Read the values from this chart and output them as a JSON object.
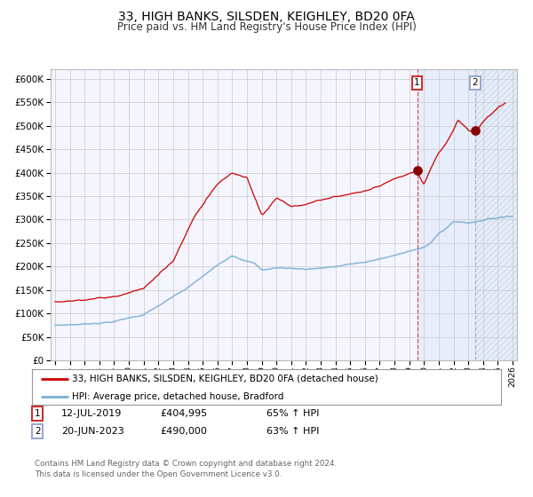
{
  "title": "33, HIGH BANKS, SILSDEN, KEIGHLEY, BD20 0FA",
  "subtitle": "Price paid vs. HM Land Registry's House Price Index (HPI)",
  "legend_line1": "33, HIGH BANKS, SILSDEN, KEIGHLEY, BD20 0FA (detached house)",
  "legend_line2": "HPI: Average price, detached house, Bradford",
  "sale1_date": "12-JUL-2019",
  "sale1_price": "£404,995",
  "sale1_hpi": "65% ↑ HPI",
  "sale2_date": "20-JUN-2023",
  "sale2_price": "£490,000",
  "sale2_hpi": "63% ↑ HPI",
  "footer": "Contains HM Land Registry data © Crown copyright and database right 2024.\nThis data is licensed under the Open Government Licence v3.0.",
  "red_color": "#cc0000",
  "blue_color": "#7bafd4",
  "background_color": "#ffffff",
  "grid_color": "#cccccc",
  "plot_bg": "#f5f5ff",
  "sale1_x_year": 2019.53,
  "sale2_x_year": 2023.47,
  "ylim_min": 0,
  "ylim_max": 620000,
  "xlim_min": 1994.7,
  "xlim_max": 2026.3
}
